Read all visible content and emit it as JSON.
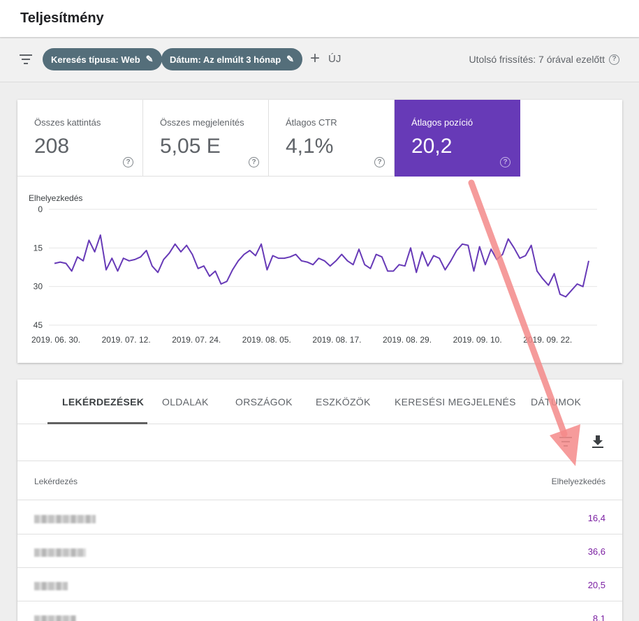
{
  "header": {
    "title": "Teljesítmény"
  },
  "filters": {
    "chips": [
      {
        "label": "Keresés típusa: Web"
      },
      {
        "label": "Dátum: Az elmúlt 3 hónap"
      }
    ],
    "add_new_label": "ÚJ",
    "last_update": "Utolsó frissítés: 7 órával ezelőtt"
  },
  "metrics": [
    {
      "label": "Összes kattintás",
      "value": "208",
      "active": false
    },
    {
      "label": "Összes megjelenítés",
      "value": "5,05 E",
      "active": false
    },
    {
      "label": "Átlagos CTR",
      "value": "4,1%",
      "active": false
    },
    {
      "label": "Átlagos pozíció",
      "value": "20,2",
      "active": true
    }
  ],
  "colors": {
    "accent": "#673ab7",
    "chip": "#546e7a",
    "position_text": "#7b1fa2",
    "annotation_arrow": "#f48a8a"
  },
  "chart_data": {
    "type": "line",
    "ylabel": "Elhelyezkedés",
    "y_inverted": true,
    "ylim": [
      0,
      45
    ],
    "yticks": [
      "0",
      "15",
      "30",
      "45"
    ],
    "xticks": [
      "2019. 06. 30.",
      "2019. 07. 12.",
      "2019. 07. 24.",
      "2019. 08. 05.",
      "2019. 08. 17.",
      "2019. 08. 29.",
      "2019. 09. 10.",
      "2019. 09. 22."
    ],
    "grid": true,
    "series": [
      {
        "values": [
          21,
          20.5,
          21,
          24,
          18.5,
          20,
          12,
          16.5,
          10,
          23.5,
          19,
          24,
          19,
          20,
          19.5,
          18.5,
          16,
          22,
          24.5,
          19.5,
          17,
          13.5,
          16.5,
          14,
          17.5,
          23,
          22,
          26,
          24,
          29,
          28,
          23.5,
          20,
          17.5,
          16,
          18,
          13.5,
          23.5,
          18,
          19,
          19,
          18.5,
          17.5,
          20,
          20.5,
          21.5,
          19,
          20,
          22,
          20,
          17.5,
          20,
          21.5,
          15.5,
          21.5,
          23,
          17.5,
          18.5,
          24,
          24,
          21.5,
          22,
          15,
          24.5,
          16.5,
          22,
          18,
          19,
          23.5,
          20,
          16,
          13.5,
          14,
          24,
          14.5,
          21.5,
          15.5,
          19.5,
          17.5,
          11.5,
          15,
          19,
          18,
          14,
          24,
          27,
          29.5,
          25,
          33,
          34,
          31.5,
          29,
          30,
          20
        ]
      }
    ]
  },
  "table": {
    "tabs": [
      {
        "label": "LEKÉRDEZÉSEK",
        "active": true
      },
      {
        "label": "OLDALAK",
        "active": false
      },
      {
        "label": "ORSZÁGOK",
        "active": false
      },
      {
        "label": "ESZKÖZÖK",
        "active": false
      },
      {
        "label": "KERESÉSI MEGJELENÉS",
        "active": false
      },
      {
        "label": "DÁTUMOK",
        "active": false
      }
    ],
    "columns": {
      "query": "Lekérdezés",
      "position": "Elhelyezkedés"
    },
    "rows": [
      {
        "position": "16,4"
      },
      {
        "position": "36,6"
      },
      {
        "position": "20,5"
      },
      {
        "position": "8,1"
      }
    ]
  }
}
